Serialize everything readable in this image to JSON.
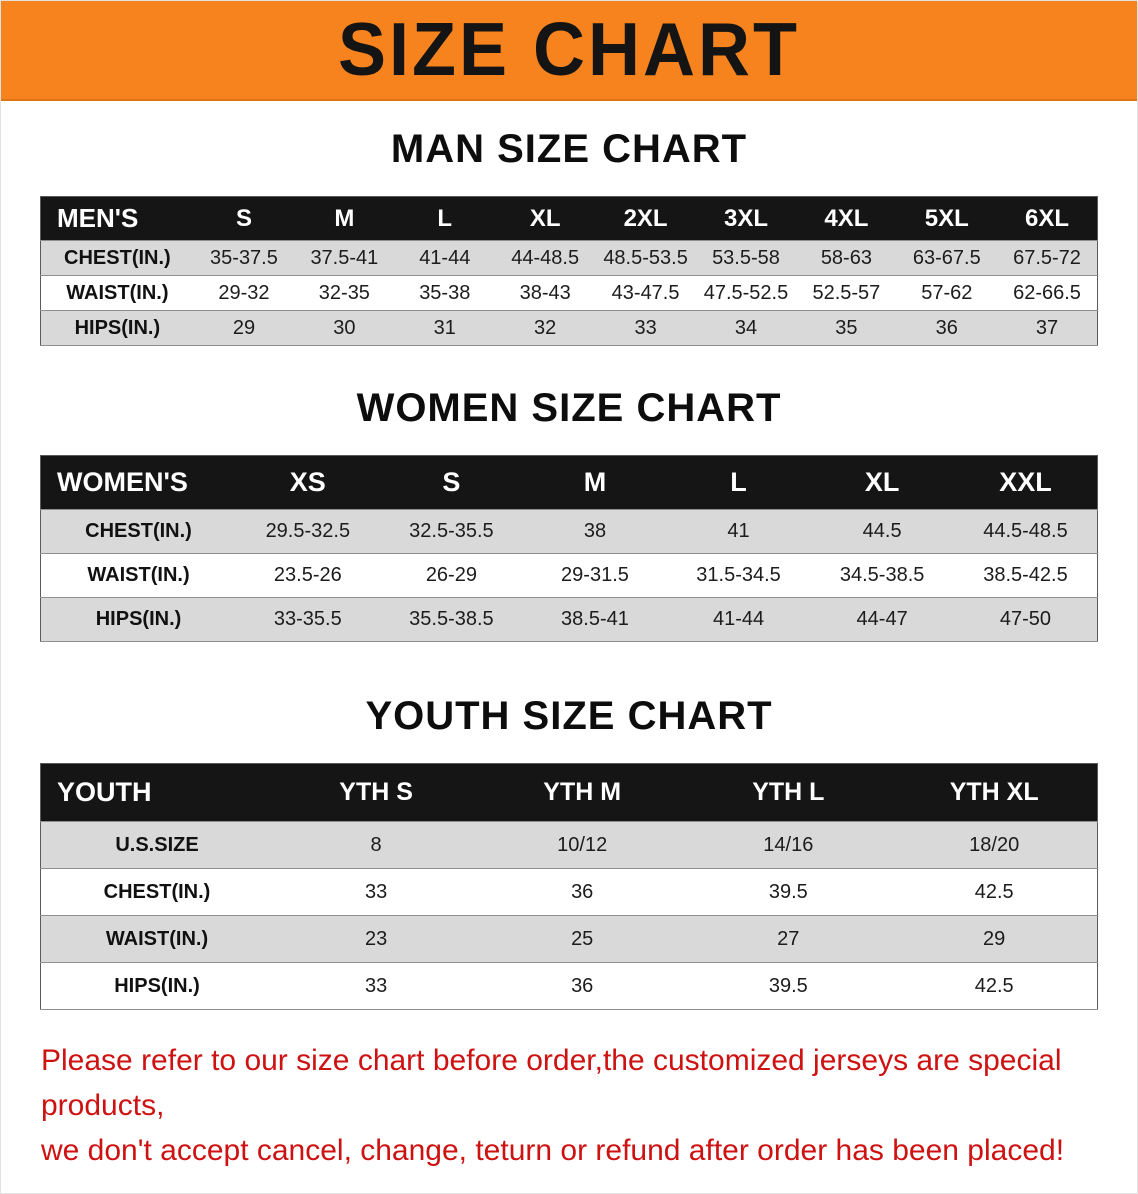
{
  "banner": {
    "title": "SIZE CHART"
  },
  "colors": {
    "banner_orange": "#F6831D",
    "header_black": "#151515",
    "row_gray": "#d9d9d9",
    "disclaimer_red": "#CE1111"
  },
  "sections": [
    {
      "heading": "MAN SIZE CHART",
      "table": {
        "label": "MEN'S",
        "columns": [
          "S",
          "M",
          "L",
          "XL",
          "2XL",
          "3XL",
          "4XL",
          "5XL",
          "6XL"
        ],
        "rows": [
          {
            "label": "CHEST(IN.)",
            "values": [
              "35-37.5",
              "37.5-41",
              "41-44",
              "44-48.5",
              "48.5-53.5",
              "53.5-58",
              "58-63",
              "63-67.5",
              "67.5-72"
            ]
          },
          {
            "label": "WAIST(IN.)",
            "values": [
              "29-32",
              "32-35",
              "35-38",
              "38-43",
              "43-47.5",
              "47.5-52.5",
              "52.5-57",
              "57-62",
              "62-66.5"
            ]
          },
          {
            "label": "HIPS(IN.)",
            "values": [
              "29",
              "30",
              "31",
              "32",
              "33",
              "34",
              "35",
              "36",
              "37"
            ]
          }
        ]
      }
    },
    {
      "heading": "WOMEN SIZE CHART",
      "table": {
        "label": "WOMEN'S",
        "columns": [
          "XS",
          "S",
          "M",
          "L",
          "XL",
          "XXL"
        ],
        "rows": [
          {
            "label": "CHEST(IN.)",
            "values": [
              "29.5-32.5",
              "32.5-35.5",
              "38",
              "41",
              "44.5",
              "44.5-48.5"
            ]
          },
          {
            "label": "WAIST(IN.)",
            "values": [
              "23.5-26",
              "26-29",
              "29-31.5",
              "31.5-34.5",
              "34.5-38.5",
              "38.5-42.5"
            ]
          },
          {
            "label": "HIPS(IN.)",
            "values": [
              "33-35.5",
              "35.5-38.5",
              "38.5-41",
              "41-44",
              "44-47",
              "47-50"
            ]
          }
        ]
      }
    },
    {
      "heading": "YOUTH SIZE CHART",
      "table": {
        "label": "YOUTH",
        "columns": [
          "YTH S",
          "YTH M",
          "YTH L",
          "YTH XL"
        ],
        "rows": [
          {
            "label": "U.S.SIZE",
            "values": [
              "8",
              "10/12",
              "14/16",
              "18/20"
            ]
          },
          {
            "label": "CHEST(IN.)",
            "values": [
              "33",
              "36",
              "39.5",
              "42.5"
            ]
          },
          {
            "label": "WAIST(IN.)",
            "values": [
              "23",
              "25",
              "27",
              "29"
            ]
          },
          {
            "label": "HIPS(IN.)",
            "values": [
              "33",
              "36",
              "39.5",
              "42.5"
            ]
          }
        ]
      }
    }
  ],
  "disclaimer": {
    "line1": "Please refer to our size chart before order,the customized jerseys are special products,",
    "line2": "we don't accept cancel, change, teturn or refund after order has been placed!"
  }
}
